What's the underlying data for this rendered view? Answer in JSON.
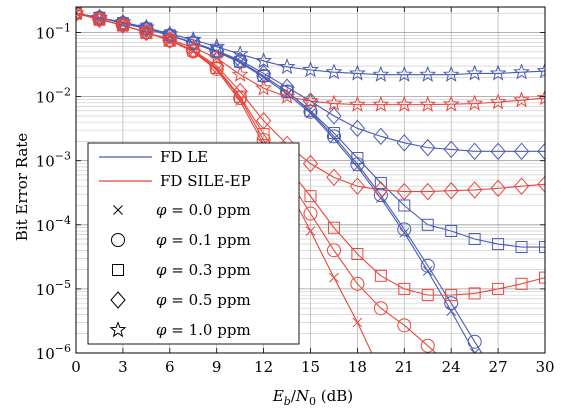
{
  "chart_data": {
    "type": "line",
    "xlabel": "E_b/N_0 (dB)",
    "ylabel": "Bit Error Rate",
    "x": [
      0,
      1.5,
      3,
      4.5,
      6,
      7.5,
      9,
      10.5,
      12,
      13.5,
      15,
      16.5,
      18,
      19.5,
      21,
      22.5,
      24,
      25.5,
      27,
      28.5,
      30
    ],
    "xlim": [
      0,
      30
    ],
    "ylim": [
      1e-06,
      0.25
    ],
    "yscale": "log",
    "grid": true,
    "legend_position": "bottom-left",
    "x_ticks": [
      "0",
      "3",
      "6",
      "9",
      "12",
      "15",
      "18",
      "21",
      "24",
      "27",
      "30"
    ],
    "y_ticks": [
      "10^-6",
      "10^-5",
      "10^-4",
      "10^-3",
      "10^-2",
      "10^-1"
    ],
    "colors": {
      "FD LE": "#4a5bb5",
      "FD SILE-EP": "#e8473d"
    },
    "legend": {
      "lines": [
        {
          "label": "FD LE",
          "color": "#4a5bb5"
        },
        {
          "label": "FD SILE-EP",
          "color": "#e8473d"
        }
      ],
      "markers": [
        {
          "marker": "x",
          "label": "φ = 0.0 ppm"
        },
        {
          "marker": "circle",
          "label": "φ = 0.1 ppm"
        },
        {
          "marker": "square",
          "label": "φ = 0.3 ppm"
        },
        {
          "marker": "diamond",
          "label": "φ = 0.5 ppm"
        },
        {
          "marker": "star",
          "label": "φ = 1.0 ppm"
        }
      ]
    },
    "series": [
      {
        "receiver": "FD LE",
        "phi": 0.0,
        "marker": "x",
        "values": [
          0.2,
          0.17,
          0.14,
          0.115,
          0.09,
          0.068,
          0.05,
          0.034,
          0.02,
          0.011,
          0.0055,
          0.0022,
          0.0008,
          0.00026,
          7.5e-05,
          1.9e-05,
          4.5e-06,
          1e-06,
          2e-07,
          null,
          null
        ]
      },
      {
        "receiver": "FD LE",
        "phi": 0.1,
        "marker": "circle",
        "values": [
          0.2,
          0.17,
          0.14,
          0.115,
          0.09,
          0.069,
          0.05,
          0.035,
          0.021,
          0.012,
          0.0058,
          0.0024,
          0.00088,
          0.00029,
          8.5e-05,
          2.3e-05,
          6e-06,
          1.5e-06,
          4e-07,
          null,
          null
        ]
      },
      {
        "receiver": "FD LE",
        "phi": 0.3,
        "marker": "square",
        "values": [
          0.2,
          0.17,
          0.14,
          0.115,
          0.09,
          0.069,
          0.051,
          0.035,
          0.021,
          0.012,
          0.006,
          0.0027,
          0.0011,
          0.00045,
          0.0002,
          0.0001,
          8e-05,
          6e-05,
          5e-05,
          4.5e-05,
          4.5e-05
        ]
      },
      {
        "receiver": "FD LE",
        "phi": 0.5,
        "marker": "diamond",
        "values": [
          0.2,
          0.17,
          0.14,
          0.115,
          0.09,
          0.07,
          0.052,
          0.037,
          0.023,
          0.014,
          0.0085,
          0.005,
          0.0032,
          0.0024,
          0.0019,
          0.0016,
          0.0015,
          0.0014,
          0.0014,
          0.0014,
          0.0014
        ]
      },
      {
        "receiver": "FD LE",
        "phi": 1.0,
        "marker": "star",
        "values": [
          0.2,
          0.17,
          0.145,
          0.12,
          0.095,
          0.077,
          0.06,
          0.046,
          0.036,
          0.029,
          0.026,
          0.024,
          0.023,
          0.022,
          0.022,
          0.022,
          0.022,
          0.023,
          0.023,
          0.024,
          0.025
        ]
      },
      {
        "receiver": "FD SILE-EP",
        "phi": 0.0,
        "marker": "x",
        "values": [
          0.2,
          0.16,
          0.13,
          0.1,
          0.075,
          0.05,
          0.026,
          0.0085,
          0.0018,
          0.0004,
          8e-05,
          1.5e-05,
          3e-06,
          5e-07,
          null,
          null,
          null,
          null,
          null,
          null,
          null
        ]
      },
      {
        "receiver": "FD SILE-EP",
        "phi": 0.1,
        "marker": "circle",
        "values": [
          0.2,
          0.16,
          0.13,
          0.1,
          0.075,
          0.051,
          0.027,
          0.0095,
          0.0021,
          0.00056,
          0.00015,
          4e-05,
          1.2e-05,
          5e-06,
          2.7e-06,
          1.3e-06,
          6e-07,
          null,
          null,
          null,
          null
        ]
      },
      {
        "receiver": "FD SILE-EP",
        "phi": 0.3,
        "marker": "square",
        "values": [
          0.2,
          0.16,
          0.13,
          0.1,
          0.075,
          0.052,
          0.028,
          0.01,
          0.0026,
          0.0008,
          0.00028,
          9e-05,
          3.5e-05,
          1.6e-05,
          1e-05,
          8e-06,
          8e-06,
          8.5e-06,
          1e-05,
          1.2e-05,
          1.5e-05
        ]
      },
      {
        "receiver": "FD SILE-EP",
        "phi": 0.5,
        "marker": "diamond",
        "values": [
          0.2,
          0.16,
          0.13,
          0.1,
          0.076,
          0.053,
          0.03,
          0.012,
          0.0042,
          0.0018,
          0.0009,
          0.00055,
          0.0004,
          0.00035,
          0.00033,
          0.00033,
          0.00034,
          0.00035,
          0.00037,
          0.0004,
          0.00043
        ]
      },
      {
        "receiver": "FD SILE-EP",
        "phi": 1.0,
        "marker": "star",
        "values": [
          0.2,
          0.16,
          0.13,
          0.1,
          0.078,
          0.058,
          0.04,
          0.022,
          0.0135,
          0.01,
          0.0085,
          0.0078,
          0.0075,
          0.0075,
          0.0075,
          0.0075,
          0.0076,
          0.0078,
          0.0082,
          0.0088,
          0.0095
        ]
      }
    ]
  }
}
